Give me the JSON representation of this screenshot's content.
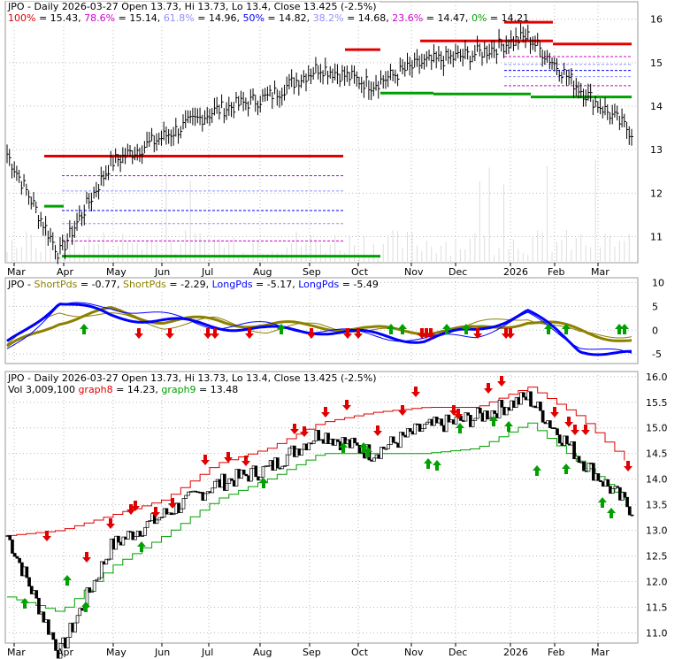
{
  "ticker": "JPO",
  "colors": {
    "red": "#e00000",
    "green": "#00a000",
    "blue": "#0000ff",
    "olive": "#8c8000",
    "magenta": "#cc00cc",
    "lightblue": "#9090ff",
    "black": "#000000"
  },
  "panel1": {
    "header": {
      "title": "JPO - Daily 2026-03-27 Open 13.73, Hi 13.73, Lo 13.4, Close 13.425 (-2.5%)",
      "fib": [
        {
          "pct": "100%",
          "val": "= 15.43,",
          "color": "#e00000"
        },
        {
          "pct": "78.6%",
          "val": "= 15.14,",
          "color": "#cc00cc"
        },
        {
          "pct": "61.8%",
          "val": "= 14.96,",
          "color": "#9090ff"
        },
        {
          "pct": "50%",
          "val": "= 14.82,",
          "color": "#0000ff"
        },
        {
          "pct": "38.2%",
          "val": "= 14.68,",
          "color": "#9090ff"
        },
        {
          "pct": "23.6%",
          "val": "= 14.47,",
          "color": "#cc00cc"
        },
        {
          "pct": "0%",
          "val": "= 14.21",
          "color": "#00a000"
        }
      ]
    },
    "y_ticks": [
      "16",
      "15",
      "14",
      "13",
      "12",
      "11"
    ],
    "x_ticks": [
      "Mar",
      "Apr",
      "May",
      "Jun",
      "Jul",
      "Aug",
      "Sep",
      "Oct",
      "Nov",
      "Dec",
      "2026",
      "Feb",
      "Mar"
    ]
  },
  "panel2": {
    "header": [
      {
        "text": "JPO - ",
        "color": "#000000"
      },
      {
        "text": "ShortPds",
        "color": "#8c8000"
      },
      {
        "text": " = -0.77, ",
        "color": "#000000"
      },
      {
        "text": "ShortPds",
        "color": "#8c8000"
      },
      {
        "text": " = -2.29, ",
        "color": "#000000"
      },
      {
        "text": "LongPds",
        "color": "#0000ff"
      },
      {
        "text": " = -5.17, ",
        "color": "#000000"
      },
      {
        "text": "LongPds",
        "color": "#0000ff"
      },
      {
        "text": " = -5.49",
        "color": "#000000"
      }
    ],
    "y_ticks": [
      "10",
      "5",
      "0",
      "-5"
    ]
  },
  "panel3": {
    "title": "JPO - Daily 2026-03-27 Open 13.73, Hi 13.73, Lo 13.4, Close 13.425 (-2.5%)",
    "vol_line": [
      {
        "text": "Vol 3,009,100 ",
        "color": "#000000"
      },
      {
        "text": "graph8",
        "color": "#e00000"
      },
      {
        "text": " = 14.23, ",
        "color": "#000000"
      },
      {
        "text": "graph9",
        "color": "#00a000"
      },
      {
        "text": " = 13.48",
        "color": "#000000"
      }
    ],
    "y_ticks": [
      "16.0",
      "15.5",
      "15.0",
      "14.5",
      "14.0",
      "13.5",
      "13.0",
      "12.5",
      "12.0",
      "11.5",
      "11.0"
    ],
    "x_ticks": [
      "Mar",
      "Apr",
      "May",
      "Jun",
      "Jul",
      "Aug",
      "Sep",
      "Oct",
      "Nov",
      "Dec",
      "2026",
      "Feb",
      "Mar"
    ]
  },
  "chart_data": [
    {
      "type": "line",
      "title": "JPO - Daily 2026-03-27 Open 13.73, Hi 13.73, Lo 13.4, Close 13.425 (-2.5%)",
      "x": [
        "Mar",
        "Apr",
        "May",
        "Jun",
        "Jul",
        "Aug",
        "Sep",
        "Oct",
        "Nov",
        "Dec",
        "2026",
        "Feb",
        "Mar"
      ],
      "series": [
        {
          "name": "JPO",
          "values": [
            12.9,
            10.6,
            12.7,
            13.3,
            13.9,
            14.2,
            14.9,
            14.5,
            15.0,
            15.2,
            15.6,
            14.4,
            13.4
          ]
        }
      ],
      "fib_levels": {
        "100%": 15.43,
        "78.6%": 15.14,
        "61.8%": 14.96,
        "50%": 14.82,
        "38.2%": 14.68,
        "23.6%": 14.47,
        "0%": 14.21
      },
      "ylim": [
        10.4,
        16.4
      ]
    },
    {
      "type": "line",
      "series": [
        {
          "name": "ShortPds",
          "values": [
            -3,
            4,
            3,
            1,
            2,
            0,
            1,
            0,
            -1,
            1,
            3,
            -1,
            -0.77
          ]
        },
        {
          "name": "ShortPds",
          "values": [
            -4,
            2,
            4,
            2,
            2,
            1,
            1,
            0,
            0,
            0,
            2,
            0,
            -2.29
          ]
        },
        {
          "name": "LongPds",
          "values": [
            -3,
            6,
            3,
            2,
            1,
            0,
            0,
            -1,
            -2,
            0,
            4,
            -4,
            -5.17
          ]
        },
        {
          "name": "LongPds",
          "values": [
            -4,
            5,
            5,
            3,
            1,
            1,
            0,
            -1,
            -2,
            -1,
            3,
            -3,
            -5.49
          ]
        }
      ],
      "ylim": [
        -7,
        11
      ]
    },
    {
      "type": "line",
      "title": "JPO - Daily 2026-03-27 Open 13.73, Hi 13.73, Lo 13.4, Close 13.425 (-2.5%)",
      "series": [
        {
          "name": "graph8",
          "values": [
            12.9,
            13.0,
            13.3,
            13.6,
            14.3,
            14.6,
            15.1,
            15.3,
            15.4,
            15.4,
            15.8,
            15.2,
            14.23
          ]
        },
        {
          "name": "graph9",
          "values": [
            11.7,
            11.4,
            12.3,
            12.9,
            13.6,
            14.0,
            14.5,
            14.5,
            14.5,
            14.6,
            15.1,
            14.3,
            13.48
          ]
        }
      ],
      "ylim": [
        10.8,
        16.1
      ]
    }
  ]
}
